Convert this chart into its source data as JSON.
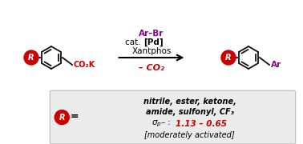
{
  "bg_color": "#ffffff",
  "box_color": "#ebebeb",
  "red_color": "#cc0000",
  "purple_color": "#880088",
  "black_color": "#000000",
  "ar_br_text": "Ar–Br",
  "cat_text": "cat. ",
  "pd_text": "[Pd]",
  "xantphos_text": "Xantphos",
  "minus_co2_text": "– CO₂",
  "r_label": "R",
  "co2k_text": "CO₂K",
  "ar_text": "Ar",
  "eq_sign": "=",
  "box_line1": "nitrile, ester, ketone,",
  "box_line2": "amide, sulfonyl, CF₃",
  "box_sigma": "σ",
  "box_sigma_sub": "p",
  "box_sigma_rest": "– : ",
  "box_vals": "1.13 – 0.65",
  "box_line4": "[moderately activated]",
  "ring_r": 14,
  "dpi": 100,
  "figw": 3.78,
  "figh": 1.8
}
